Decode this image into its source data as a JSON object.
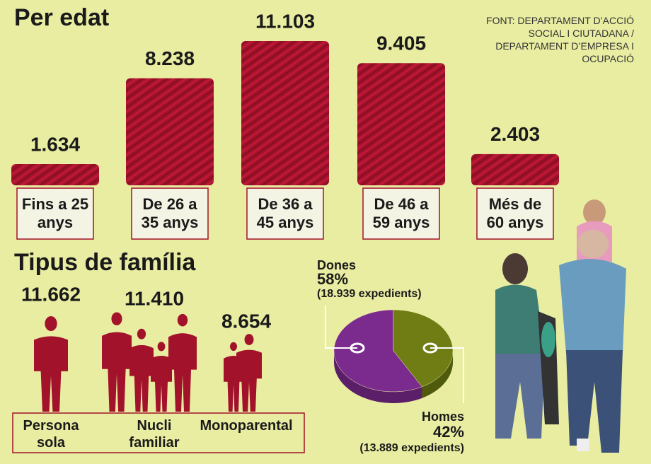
{
  "source": "FONT: DEPARTAMENT D’ACCIÓ SOCIAL I CIUTADANA / DEPARTAMENT D’EMPRESA I OCUPACIÓ",
  "chart_data": [
    {
      "type": "bar",
      "title": "Per edat",
      "categories": [
        "Fins a 25 anys",
        "De 26 a 35 anys",
        "De 36 a 45 anys",
        "De 46 a 59 anys",
        "Més de 60 anys"
      ],
      "values": [
        1634,
        8238,
        11103,
        9405,
        2403
      ],
      "value_labels": [
        "1.634",
        "8.238",
        "11.103",
        "9.405",
        "2.403"
      ],
      "color": "#a3122b"
    },
    {
      "type": "pictogram",
      "title": "Tipus de família",
      "categories": [
        "Persona sola",
        "Nucli familiar",
        "Monoparental"
      ],
      "values": [
        11662,
        11410,
        8654
      ],
      "value_labels": [
        "11.662",
        "11.410",
        "8.654"
      ],
      "color": "#a3122b"
    },
    {
      "type": "pie",
      "categories": [
        "Dones",
        "Homes"
      ],
      "values": [
        58,
        42
      ],
      "value_labels": [
        "58%",
        "42%"
      ],
      "annotations": [
        "(18.939 expedients)",
        "(13.889 expedients)"
      ],
      "colors": [
        "#7b2b8e",
        "#6f7d14"
      ]
    }
  ]
}
